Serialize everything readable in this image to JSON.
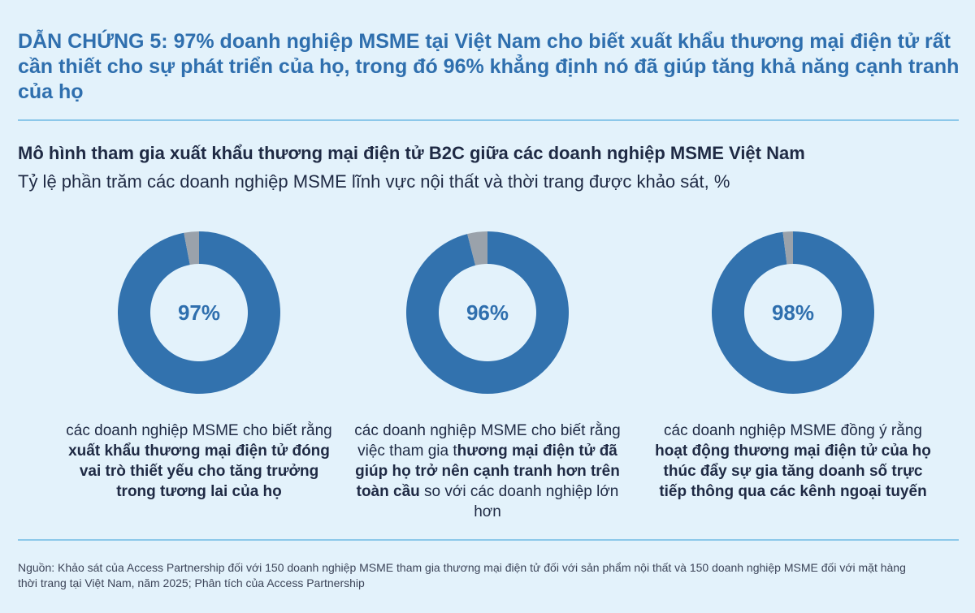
{
  "header": {
    "headline": "DẪN CHỨNG 5: 97% doanh nghiệp MSME tại Việt Nam cho biết xuất khẩu thương mại điện tử rất cần thiết cho sự phát triển của họ, trong đó 96% khẳng định nó đã giúp tăng khả năng cạnh tranh của họ"
  },
  "colors": {
    "primary": "#3272ae",
    "remainder": "#9aa2ab",
    "accent_text": "#2f6fae",
    "background": "#e3f2fb",
    "rule": "#8cc8ea"
  },
  "chart_data": {
    "type": "pie",
    "title": "Mô hình tham gia xuất khẩu thương mại điện tử B2C giữa các doanh nghiệp MSME Việt Nam",
    "subtitle": "Tỷ lệ phần trăm các doanh nghiệp MSME lĩnh vực nội thất và thời trang được khảo sát, %",
    "donuts": [
      {
        "value": 97,
        "label": "97%",
        "caption_parts": [
          {
            "text": "các doanh nghiệp MSME cho biết rằng ",
            "bold": false
          },
          {
            "text": "xuất khẩu thương mại điện tử đóng vai trò thiết yếu cho tăng trưởng trong tương lai của họ",
            "bold": true
          }
        ]
      },
      {
        "value": 96,
        "label": "96%",
        "caption_parts": [
          {
            "text": "các doanh nghiệp MSME cho biết rằng việc tham gia t",
            "bold": false
          },
          {
            "text": "hương mại điện tử đã giúp họ trở nên cạnh tranh hơn trên toàn cầu",
            "bold": true
          },
          {
            "text": " so với các doanh nghiệp lớn hơn",
            "bold": false
          }
        ]
      },
      {
        "value": 98,
        "label": "98%",
        "caption_parts": [
          {
            "text": "các doanh nghiệp MSME đồng ý rằng ",
            "bold": false
          },
          {
            "text": "hoạt động thương mại điện tử của họ thúc đẩy sự gia tăng doanh số trực tiếp thông qua các kênh ngoại tuyến",
            "bold": true
          }
        ]
      }
    ]
  },
  "footer": {
    "source": "Nguồn: Khảo sát của Access Partnership đối với 150 doanh nghiệp MSME tham gia thương mại điện tử đối với sản phẩm nội thất và 150 doanh nghiệp MSME đối với mặt hàng thời trang tại Việt Nam, năm 2025; Phân tích của Access Partnership"
  }
}
